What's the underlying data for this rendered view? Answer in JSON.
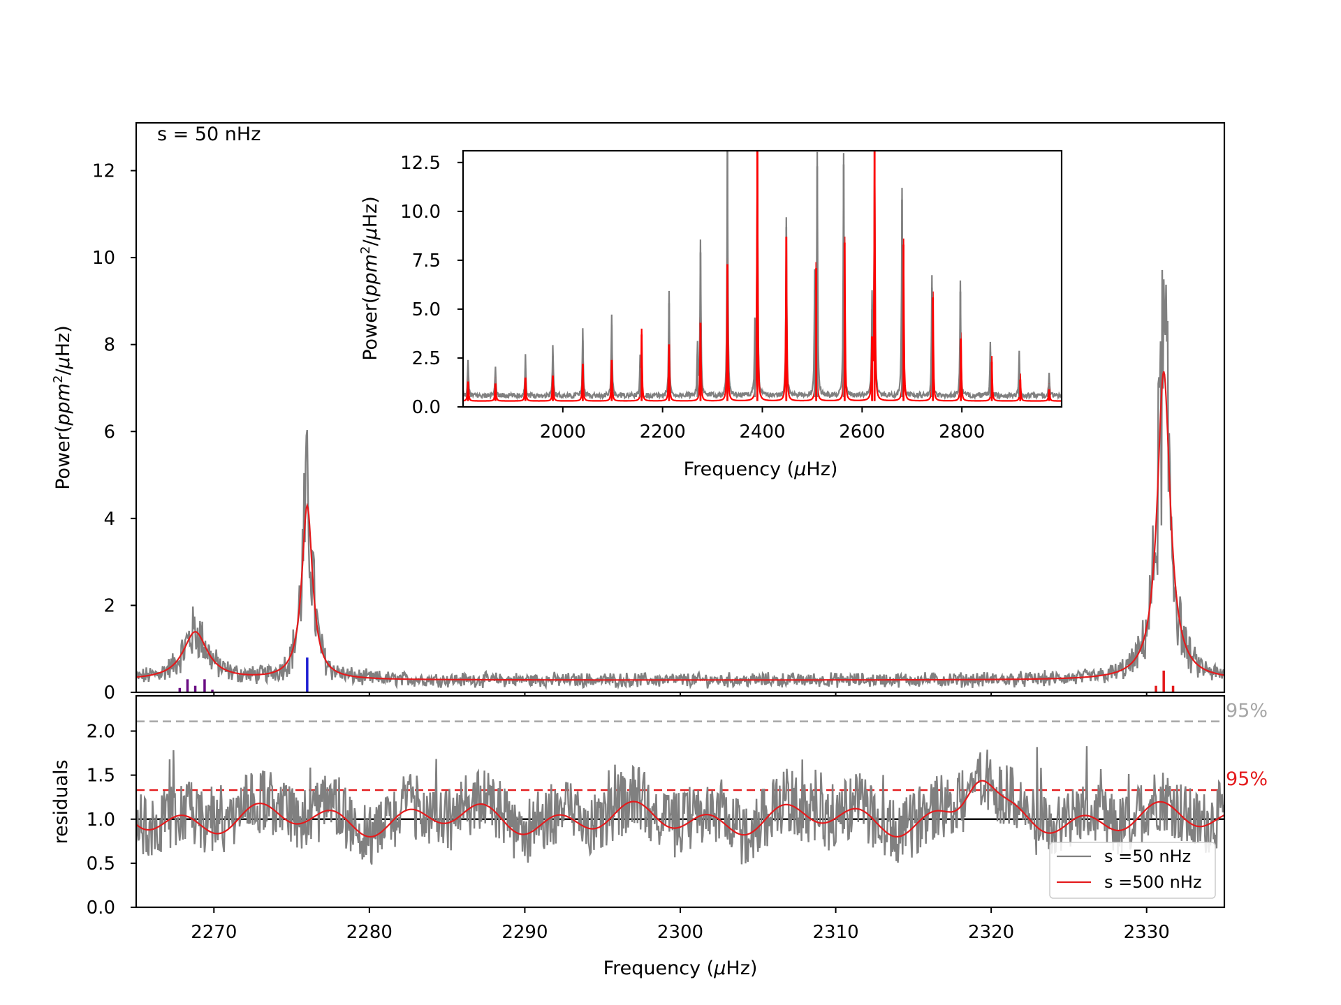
{
  "chart_data": [
    {
      "id": "main",
      "type": "line",
      "annotation": "s = 50 nHz",
      "xlabel": "",
      "ylabel": "Power(ppm²/μHz)",
      "xlim": [
        2265,
        2335
      ],
      "ylim": [
        0,
        13.1
      ],
      "yticks": [
        0,
        2,
        4,
        6,
        8,
        10,
        12
      ],
      "series": [
        {
          "name": "s =50 nHz",
          "color": "#808080",
          "kind": "noisy-spectrum",
          "baseline": 0.3,
          "noise": 0.14
        },
        {
          "name": "s =500 nHz",
          "color": "#e41a1c",
          "kind": "lorentzian-model",
          "baseline": 0.28
        }
      ],
      "peaks": [
        {
          "center": 2268.8,
          "height": 1.1,
          "width": 0.95
        },
        {
          "center": 2276.0,
          "height": 4.0,
          "width": 0.42
        },
        {
          "center": 2331.1,
          "height": 7.1,
          "width": 0.5
        }
      ],
      "mode_markers": [
        {
          "x": 2267.8,
          "height": 0.1,
          "color": "#6a0d83"
        },
        {
          "x": 2268.3,
          "height": 0.3,
          "color": "#6a0d83"
        },
        {
          "x": 2268.8,
          "height": 0.15,
          "color": "#6a0d83"
        },
        {
          "x": 2269.4,
          "height": 0.3,
          "color": "#6a0d83"
        },
        {
          "x": 2269.9,
          "height": 0.06,
          "color": "#6a0d83"
        },
        {
          "x": 2276.0,
          "height": 0.8,
          "color": "#1f1fd2"
        },
        {
          "x": 2330.6,
          "height": 0.15,
          "color": "#e41a1c"
        },
        {
          "x": 2331.1,
          "height": 0.5,
          "color": "#e41a1c"
        },
        {
          "x": 2331.7,
          "height": 0.15,
          "color": "#e41a1c"
        }
      ]
    },
    {
      "id": "residuals",
      "type": "line",
      "xlabel": "Frequency (μHz)",
      "ylabel": "residuals",
      "xlim": [
        2265,
        2335
      ],
      "ylim": [
        0,
        2.4
      ],
      "xticks": [
        2270,
        2280,
        2290,
        2300,
        2310,
        2320,
        2330
      ],
      "yticks": [
        0.0,
        0.5,
        1.0,
        1.5,
        2.0
      ],
      "reference_lines": [
        {
          "y": 2.11,
          "label": "95%",
          "color": "#a6a6a6",
          "style": "dashed"
        },
        {
          "y": 1.33,
          "label": "95%",
          "color": "#e41a1c",
          "style": "dashed"
        },
        {
          "y": 1.0,
          "label": "",
          "color": "#000000",
          "style": "solid"
        }
      ],
      "legend": {
        "placement": "lower-right",
        "entries": [
          {
            "label": "s =50 nHz",
            "color": "#808080"
          },
          {
            "label": "s =500 nHz",
            "color": "#e41a1c"
          }
        ]
      }
    },
    {
      "id": "inset",
      "type": "line",
      "xlabel": "Frequency (μHz)",
      "ylabel": "Power(ppm²/μHz)",
      "xlim": [
        1800,
        3000
      ],
      "ylim": [
        0,
        13.1
      ],
      "xticks": [
        2000,
        2200,
        2400,
        2600,
        2800
      ],
      "yticks": [
        0.0,
        2.5,
        5.0,
        7.5,
        10.0,
        12.5
      ],
      "peaks_gray": [
        {
          "x": 1810,
          "h": 1.8
        },
        {
          "x": 1865,
          "h": 1.5
        },
        {
          "x": 1925,
          "h": 2.0
        },
        {
          "x": 1980,
          "h": 2.6
        },
        {
          "x": 2040,
          "h": 3.4
        },
        {
          "x": 2098,
          "h": 4.2
        },
        {
          "x": 2155,
          "h": 2.0
        },
        {
          "x": 2213,
          "h": 5.3
        },
        {
          "x": 2270,
          "h": 2.7
        },
        {
          "x": 2276,
          "h": 7.9
        },
        {
          "x": 2330,
          "h": 13.1
        },
        {
          "x": 2385,
          "h": 3.4
        },
        {
          "x": 2390,
          "h": 13.1
        },
        {
          "x": 2448,
          "h": 9.2
        },
        {
          "x": 2505,
          "h": 6.0
        },
        {
          "x": 2510,
          "h": 12.3
        },
        {
          "x": 2563,
          "h": 12.4
        },
        {
          "x": 2620,
          "h": 5.0
        },
        {
          "x": 2625,
          "h": 13.1
        },
        {
          "x": 2680,
          "h": 10.6
        },
        {
          "x": 2740,
          "h": 6.1
        },
        {
          "x": 2797,
          "h": 5.9
        },
        {
          "x": 2857,
          "h": 2.8
        },
        {
          "x": 2915,
          "h": 2.2
        },
        {
          "x": 2975,
          "h": 1.2
        }
      ],
      "peaks_red": [
        {
          "x": 1810,
          "h": 1.3
        },
        {
          "x": 1865,
          "h": 1.2
        },
        {
          "x": 1925,
          "h": 1.5
        },
        {
          "x": 1980,
          "h": 1.6
        },
        {
          "x": 2040,
          "h": 2.2
        },
        {
          "x": 2098,
          "h": 2.4
        },
        {
          "x": 2158,
          "h": 3.7
        },
        {
          "x": 2213,
          "h": 3.2
        },
        {
          "x": 2276,
          "h": 4.3
        },
        {
          "x": 2330,
          "h": 7.3
        },
        {
          "x": 2390,
          "h": 13.1
        },
        {
          "x": 2448,
          "h": 8.7
        },
        {
          "x": 2508,
          "h": 7.1
        },
        {
          "x": 2565,
          "h": 8.4
        },
        {
          "x": 2620,
          "h": 3.6
        },
        {
          "x": 2625,
          "h": 13.1
        },
        {
          "x": 2683,
          "h": 8.3
        },
        {
          "x": 2742,
          "h": 5.6
        },
        {
          "x": 2798,
          "h": 3.5
        },
        {
          "x": 2860,
          "h": 2.3
        },
        {
          "x": 2917,
          "h": 1.4
        },
        {
          "x": 2975,
          "h": 0.9
        }
      ]
    }
  ]
}
